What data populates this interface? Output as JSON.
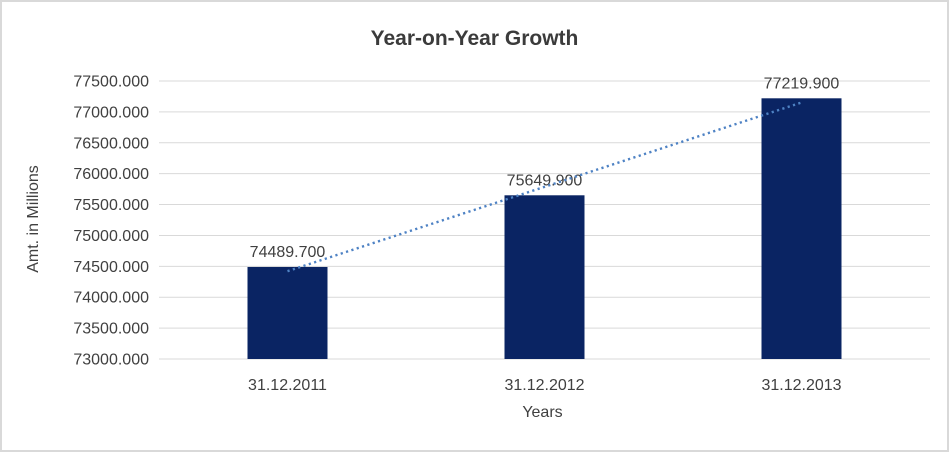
{
  "chart_data": {
    "type": "bar",
    "title": "Year-on-Year Growth",
    "xlabel": "Years",
    "ylabel": "Amt. in Millions",
    "categories": [
      "31.12.2011",
      "31.12.2012",
      "31.12.2013"
    ],
    "values": [
      74489.7,
      75649.9,
      77219.9
    ],
    "data_labels": [
      "74489.700",
      "75649.900",
      "77219.900"
    ],
    "ylim": [
      73000,
      77500
    ],
    "ytick_step": 500,
    "ytick_decimals": 3,
    "grid": true,
    "legend_position": "none",
    "bar_color": "#0a2463",
    "grid_color": "#d9d9d9",
    "axis_line_color": "#d9d9d9",
    "text_color": "#404040",
    "trendline": {
      "type": "linear",
      "style": "dotted",
      "color": "#4e82c4"
    }
  }
}
